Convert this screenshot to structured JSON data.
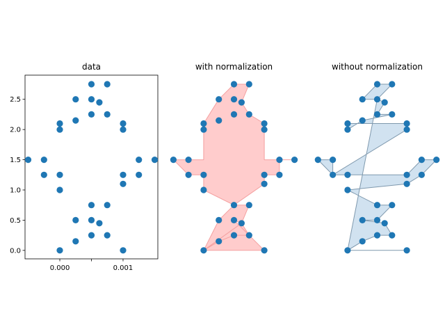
{
  "chart_data": [
    {
      "type": "scatter",
      "title": "data",
      "xlabel": "",
      "ylabel": "",
      "x_ticks": [
        0.0,
        0.0005,
        0.001
      ],
      "x_tick_labels": [
        "0.000",
        "0.001"
      ],
      "x_tick_label_values": [
        0.0,
        0.001
      ],
      "y_ticks": [
        0.0,
        0.5,
        1.0,
        1.5,
        2.0,
        2.5
      ],
      "y_tick_labels": [
        "0.0",
        "0.5",
        "1.0",
        "1.5",
        "2.0",
        "2.5"
      ],
      "xlim": [
        -0.00055,
        0.00155
      ],
      "ylim": [
        -0.14,
        2.9
      ],
      "color": "#1f77b4",
      "points": [
        [
          0.0005,
          2.75
        ],
        [
          0.00075,
          2.75
        ],
        [
          0.00025,
          2.5
        ],
        [
          0.0005,
          2.5
        ],
        [
          0.000625,
          2.45
        ],
        [
          0.00025,
          2.15
        ],
        [
          0.0005,
          2.25
        ],
        [
          0.00075,
          2.25
        ],
        [
          0.0,
          2.1
        ],
        [
          0.0,
          2.0
        ],
        [
          0.001,
          2.1
        ],
        [
          0.001,
          2.0
        ],
        [
          -0.0005,
          1.5
        ],
        [
          -0.00025,
          1.5
        ],
        [
          -0.00025,
          1.25
        ],
        [
          0.0,
          1.25
        ],
        [
          0.0,
          1.0
        ],
        [
          0.00125,
          1.5
        ],
        [
          0.0015,
          1.5
        ],
        [
          0.00125,
          1.25
        ],
        [
          0.001,
          1.25
        ],
        [
          0.001,
          1.1
        ],
        [
          0.0005,
          0.75
        ],
        [
          0.00075,
          0.75
        ],
        [
          0.00025,
          0.5
        ],
        [
          0.0005,
          0.5
        ],
        [
          0.000625,
          0.45
        ],
        [
          0.00025,
          0.15
        ],
        [
          0.0005,
          0.25
        ],
        [
          0.00075,
          0.25
        ],
        [
          0.0,
          0.0
        ],
        [
          0.001,
          0.0
        ]
      ]
    },
    {
      "type": "scatter",
      "title": "with normalization",
      "xlim": [
        -0.00055,
        0.00155
      ],
      "ylim": [
        -0.14,
        2.9
      ],
      "color": "#1f77b4",
      "fill_color": "#ff9999",
      "fill_edge_color": "#f4a0a0",
      "fill_polygon": [
        [
          0.0,
          0.0
        ],
        [
          0.00025,
          0.15
        ],
        [
          0.0005,
          0.25
        ],
        [
          0.00075,
          0.25
        ],
        [
          0.000625,
          0.45
        ],
        [
          0.00075,
          0.75
        ],
        [
          0.0005,
          0.75
        ],
        [
          0.001,
          1.1
        ],
        [
          0.001,
          1.25
        ],
        [
          0.00125,
          1.25
        ],
        [
          0.00125,
          1.5
        ],
        [
          0.0015,
          1.5
        ],
        [
          0.001,
          1.5
        ],
        [
          0.001,
          2.0
        ],
        [
          0.001,
          2.1
        ],
        [
          0.00075,
          2.25
        ],
        [
          0.000625,
          2.45
        ],
        [
          0.00075,
          2.75
        ],
        [
          0.0005,
          2.75
        ],
        [
          0.00025,
          2.5
        ],
        [
          0.0,
          2.1
        ],
        [
          0.0,
          2.0
        ],
        [
          0.0,
          1.5
        ],
        [
          -0.00025,
          1.5
        ],
        [
          -0.0005,
          1.5
        ],
        [
          -0.00025,
          1.25
        ],
        [
          0.0,
          1.25
        ],
        [
          0.0,
          1.0
        ],
        [
          0.0005,
          0.75
        ],
        [
          0.00025,
          0.5
        ],
        [
          0.0,
          0.0
        ],
        [
          0.001,
          0.0
        ],
        [
          0.0005,
          0.5
        ],
        [
          0.000625,
          0.45
        ]
      ],
      "points": [
        [
          0.0005,
          2.75
        ],
        [
          0.00075,
          2.75
        ],
        [
          0.00025,
          2.5
        ],
        [
          0.0005,
          2.5
        ],
        [
          0.000625,
          2.45
        ],
        [
          0.00025,
          2.15
        ],
        [
          0.0005,
          2.25
        ],
        [
          0.00075,
          2.25
        ],
        [
          0.0,
          2.1
        ],
        [
          0.0,
          2.0
        ],
        [
          0.001,
          2.1
        ],
        [
          0.001,
          2.0
        ],
        [
          -0.0005,
          1.5
        ],
        [
          -0.00025,
          1.5
        ],
        [
          -0.00025,
          1.25
        ],
        [
          0.0,
          1.25
        ],
        [
          0.0,
          1.0
        ],
        [
          0.00125,
          1.5
        ],
        [
          0.0015,
          1.5
        ],
        [
          0.00125,
          1.25
        ],
        [
          0.001,
          1.25
        ],
        [
          0.001,
          1.1
        ],
        [
          0.0005,
          0.75
        ],
        [
          0.00075,
          0.75
        ],
        [
          0.00025,
          0.5
        ],
        [
          0.0005,
          0.5
        ],
        [
          0.000625,
          0.45
        ],
        [
          0.00025,
          0.15
        ],
        [
          0.0005,
          0.25
        ],
        [
          0.00075,
          0.25
        ],
        [
          0.0,
          0.0
        ],
        [
          0.001,
          0.0
        ]
      ]
    },
    {
      "type": "scatter",
      "title": "without normalization",
      "xlim": [
        -0.00055,
        0.00155
      ],
      "ylim": [
        -0.14,
        2.9
      ],
      "color": "#1f77b4",
      "fill_color": "#b9d3e8",
      "fill_edge_color": "#7e98ad",
      "fill_polygon": [
        [
          0.0,
          0.0
        ],
        [
          0.00025,
          0.15
        ],
        [
          0.0005,
          0.25
        ],
        [
          0.00075,
          0.25
        ],
        [
          0.000625,
          0.45
        ],
        [
          0.00025,
          0.5
        ],
        [
          0.0005,
          0.5
        ],
        [
          0.00075,
          0.75
        ],
        [
          0.0005,
          0.75
        ],
        [
          0.0,
          1.0
        ],
        [
          0.001,
          1.1
        ],
        [
          0.00125,
          1.25
        ],
        [
          0.0015,
          1.5
        ],
        [
          0.00125,
          1.5
        ],
        [
          0.001,
          1.25
        ],
        [
          -0.00025,
          1.25
        ],
        [
          -0.00025,
          1.5
        ],
        [
          -0.0005,
          1.5
        ],
        [
          -0.00025,
          1.25
        ],
        [
          0.001,
          2.0
        ],
        [
          0.001,
          2.1
        ],
        [
          0.0,
          2.1
        ],
        [
          0.0,
          2.0
        ],
        [
          0.00025,
          2.15
        ],
        [
          0.00075,
          2.25
        ],
        [
          0.0005,
          2.25
        ],
        [
          0.000625,
          2.45
        ],
        [
          0.0005,
          2.5
        ],
        [
          0.00025,
          2.5
        ],
        [
          0.0005,
          2.75
        ],
        [
          0.00075,
          2.75
        ],
        [
          0.0005,
          2.5
        ],
        [
          0.000625,
          2.45
        ],
        [
          0.0005,
          2.5
        ],
        [
          0.0,
          0.0
        ],
        [
          0.001,
          0.0
        ]
      ],
      "points": [
        [
          0.0005,
          2.75
        ],
        [
          0.00075,
          2.75
        ],
        [
          0.00025,
          2.5
        ],
        [
          0.0005,
          2.5
        ],
        [
          0.000625,
          2.45
        ],
        [
          0.00025,
          2.15
        ],
        [
          0.0005,
          2.25
        ],
        [
          0.00075,
          2.25
        ],
        [
          0.0,
          2.1
        ],
        [
          0.0,
          2.0
        ],
        [
          0.001,
          2.1
        ],
        [
          0.001,
          2.0
        ],
        [
          -0.0005,
          1.5
        ],
        [
          -0.00025,
          1.5
        ],
        [
          -0.00025,
          1.25
        ],
        [
          0.0,
          1.25
        ],
        [
          0.0,
          1.0
        ],
        [
          0.00125,
          1.5
        ],
        [
          0.0015,
          1.5
        ],
        [
          0.00125,
          1.25
        ],
        [
          0.001,
          1.25
        ],
        [
          0.001,
          1.1
        ],
        [
          0.0005,
          0.75
        ],
        [
          0.00075,
          0.75
        ],
        [
          0.00025,
          0.5
        ],
        [
          0.0005,
          0.5
        ],
        [
          0.000625,
          0.45
        ],
        [
          0.00025,
          0.15
        ],
        [
          0.0005,
          0.25
        ],
        [
          0.00075,
          0.25
        ],
        [
          0.0,
          0.0
        ],
        [
          0.001,
          0.0
        ]
      ]
    }
  ]
}
